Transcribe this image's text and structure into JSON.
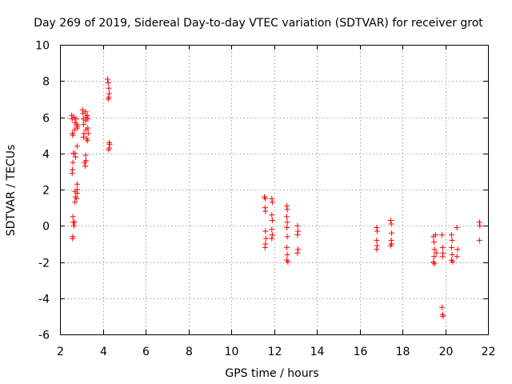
{
  "chart_data": {
    "type": "scatter",
    "title": "Day 269 of 2019, Sidereal Day-to-day VTEC variation (SDTVAR) for receiver grot",
    "xlabel": "GPS time / hours",
    "ylabel": "SDTVAR / TECUs",
    "xlim": [
      2,
      22
    ],
    "ylim": [
      -6,
      10
    ],
    "xticks": [
      2,
      4,
      6,
      8,
      10,
      12,
      14,
      16,
      18,
      20,
      22
    ],
    "yticks": [
      -6,
      -4,
      -2,
      0,
      2,
      4,
      6,
      8,
      10
    ],
    "xtick_labels": [
      "2",
      "4",
      "6",
      "8",
      "10",
      "12",
      "14",
      "16",
      "18",
      "20",
      "22"
    ],
    "ytick_labels": [
      "-6",
      "-4",
      "-2",
      "0",
      "2",
      "4",
      "6",
      "8",
      "10"
    ],
    "grid": true,
    "marker": "+",
    "color": "#ff0000",
    "series": [
      {
        "name": "SDTVAR",
        "points": [
          [
            2.55,
            6.1
          ],
          [
            2.57,
            5.9
          ],
          [
            2.58,
            5.1
          ],
          [
            2.6,
            5.0
          ],
          [
            2.62,
            4.0
          ],
          [
            2.6,
            3.5
          ],
          [
            2.58,
            3.1
          ],
          [
            2.57,
            2.9
          ],
          [
            2.6,
            0.5
          ],
          [
            2.62,
            0.2
          ],
          [
            2.6,
            -0.6
          ],
          [
            2.59,
            -0.7
          ],
          [
            2.65,
            6.0
          ],
          [
            2.7,
            5.7
          ],
          [
            2.68,
            5.3
          ],
          [
            2.7,
            4.0
          ],
          [
            2.72,
            3.8
          ],
          [
            2.7,
            1.9
          ],
          [
            2.72,
            1.6
          ],
          [
            2.7,
            1.3
          ],
          [
            2.68,
            0.2
          ],
          [
            2.65,
            0.0
          ],
          [
            2.75,
            5.9
          ],
          [
            2.78,
            5.6
          ],
          [
            2.8,
            5.4
          ],
          [
            2.8,
            4.4
          ],
          [
            2.8,
            2.3
          ],
          [
            2.8,
            2.0
          ],
          [
            2.8,
            1.8
          ],
          [
            2.78,
            1.5
          ],
          [
            2.82,
            5.5
          ],
          [
            3.05,
            6.4
          ],
          [
            3.08,
            6.2
          ],
          [
            3.1,
            5.9
          ],
          [
            3.1,
            5.6
          ],
          [
            3.12,
            5.1
          ],
          [
            3.1,
            4.9
          ],
          [
            3.15,
            3.5
          ],
          [
            3.18,
            3.3
          ],
          [
            3.2,
            6.3
          ],
          [
            3.22,
            6.0
          ],
          [
            3.2,
            5.8
          ],
          [
            3.22,
            5.3
          ],
          [
            3.25,
            4.8
          ],
          [
            3.28,
            6.1
          ],
          [
            3.3,
            5.9
          ],
          [
            3.3,
            5.4
          ],
          [
            3.32,
            5.1
          ],
          [
            3.28,
            4.7
          ],
          [
            3.2,
            3.9
          ],
          [
            3.22,
            3.6
          ],
          [
            4.22,
            8.1
          ],
          [
            4.25,
            7.9
          ],
          [
            4.28,
            7.6
          ],
          [
            4.3,
            7.3
          ],
          [
            4.28,
            7.1
          ],
          [
            4.25,
            7.0
          ],
          [
            4.3,
            4.6
          ],
          [
            4.32,
            4.5
          ],
          [
            4.3,
            4.3
          ],
          [
            4.28,
            4.2
          ],
          [
            11.55,
            1.6
          ],
          [
            11.6,
            1.5
          ],
          [
            11.58,
            1.0
          ],
          [
            11.6,
            0.8
          ],
          [
            11.6,
            -0.3
          ],
          [
            11.62,
            -0.7
          ],
          [
            11.6,
            -1.0
          ],
          [
            11.58,
            -1.2
          ],
          [
            11.9,
            1.5
          ],
          [
            11.92,
            1.3
          ],
          [
            11.9,
            0.6
          ],
          [
            11.92,
            0.3
          ],
          [
            11.9,
            -0.2
          ],
          [
            11.92,
            -0.5
          ],
          [
            11.9,
            -0.7
          ],
          [
            12.6,
            1.1
          ],
          [
            12.62,
            0.9
          ],
          [
            12.6,
            0.5
          ],
          [
            12.62,
            0.2
          ],
          [
            12.6,
            -0.1
          ],
          [
            12.62,
            -0.6
          ],
          [
            12.6,
            -1.2
          ],
          [
            12.62,
            -1.6
          ],
          [
            12.6,
            -1.9
          ],
          [
            12.65,
            -2.0
          ],
          [
            13.1,
            0.0
          ],
          [
            13.12,
            -0.3
          ],
          [
            13.1,
            -0.5
          ],
          [
            13.12,
            -1.3
          ],
          [
            13.1,
            -1.5
          ],
          [
            16.8,
            -0.1
          ],
          [
            16.82,
            -0.3
          ],
          [
            16.8,
            -0.8
          ],
          [
            16.82,
            -1.1
          ],
          [
            16.8,
            -1.3
          ],
          [
            17.45,
            0.3
          ],
          [
            17.48,
            0.1
          ],
          [
            17.5,
            -0.4
          ],
          [
            17.48,
            -0.8
          ],
          [
            17.5,
            -1.0
          ],
          [
            17.45,
            -1.1
          ],
          [
            19.45,
            -0.6
          ],
          [
            19.48,
            -0.9
          ],
          [
            19.5,
            -1.3
          ],
          [
            19.48,
            -1.7
          ],
          [
            19.45,
            -2.0
          ],
          [
            19.5,
            -2.1
          ],
          [
            19.55,
            -0.5
          ],
          [
            19.58,
            -1.5
          ],
          [
            19.85,
            -0.5
          ],
          [
            19.88,
            -1.2
          ],
          [
            19.9,
            -1.5
          ],
          [
            19.88,
            -1.7
          ],
          [
            19.85,
            -4.5
          ],
          [
            19.88,
            -4.9
          ],
          [
            19.9,
            -5.0
          ],
          [
            20.3,
            -0.5
          ],
          [
            20.32,
            -0.8
          ],
          [
            20.3,
            -1.2
          ],
          [
            20.32,
            -1.6
          ],
          [
            20.3,
            -1.9
          ],
          [
            20.35,
            -2.0
          ],
          [
            20.55,
            -0.1
          ],
          [
            20.58,
            -1.3
          ],
          [
            20.55,
            -1.7
          ],
          [
            21.6,
            0.2
          ],
          [
            21.62,
            0.0
          ],
          [
            21.6,
            -0.8
          ]
        ]
      }
    ]
  }
}
